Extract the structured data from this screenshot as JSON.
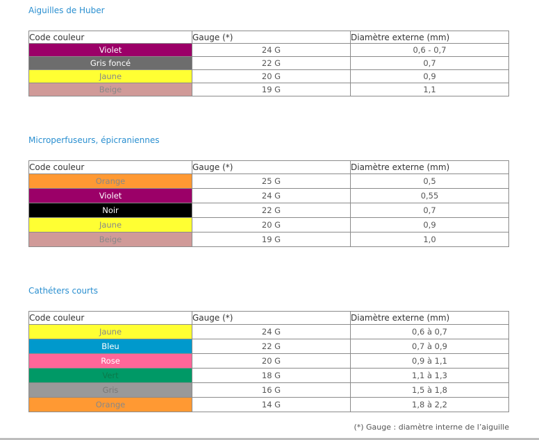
{
  "sections": [
    {
      "title": "Aiguilles de Huber",
      "header": [
        "Code couleur",
        "Gauge (*)",
        "Diamètre externe (mm)"
      ],
      "rows": [
        [
          "Violet",
          "24 G",
          "0,6 - 0,7"
        ],
        [
          "Gris foncé",
          "22 G",
          "0,7"
        ],
        [
          "Jaune",
          "20 G",
          "0,9"
        ],
        [
          "Beige",
          "19 G",
          "1,1"
        ]
      ],
      "cell_colors": [
        [
          "#9b0068",
          "#ffffff"
        ],
        [
          "#6d6d6d",
          "#ffffff"
        ],
        [
          "#ffff33",
          "#888888"
        ],
        [
          "#d09a98",
          "#888888"
        ]
      ]
    },
    {
      "title": "Microperfuseurs, épicraniennes",
      "header": [
        "Code couleur",
        "Gauge (*)",
        "Diamètre externe (mm)"
      ],
      "rows": [
        [
          "Orange",
          "25 G",
          "0,5"
        ],
        [
          "Violet",
          "24 G",
          "0,55"
        ],
        [
          "Noir",
          "22 G",
          "0,7"
        ],
        [
          "Jaune",
          "20 G",
          "0,9"
        ],
        [
          "Beige",
          "19 G",
          "1,0"
        ]
      ],
      "cell_colors": [
        [
          "#ff9933",
          "#888888"
        ],
        [
          "#9b0068",
          "#ffffff"
        ],
        [
          "#000000",
          "#ffffff"
        ],
        [
          "#ffff33",
          "#888888"
        ],
        [
          "#d09a98",
          "#888888"
        ]
      ]
    },
    {
      "title": "Cathéters courts",
      "header": [
        "Code couleur",
        "Gauge (*)",
        "Diamètre externe (mm)"
      ],
      "rows": [
        [
          "Jaune",
          "24 G",
          "0,6 à 0,7"
        ],
        [
          "Bleu",
          "22 G",
          "0,7 à 0,9"
        ],
        [
          "Rose",
          "20 G",
          "0,9 à 1,1"
        ],
        [
          "Vert",
          "18 G",
          "1,1 à 1,3"
        ],
        [
          "Gris",
          "16 G",
          "1,5 à 1,8"
        ],
        [
          "Orange",
          "14 G",
          "1,8 à 2,2"
        ]
      ],
      "cell_colors": [
        [
          "#ffff33",
          "#888888"
        ],
        [
          "#0099cc",
          "#ffffff"
        ],
        [
          "#ff6699",
          "#ffffff"
        ],
        [
          "#009966",
          "#0a7a4a"
        ],
        [
          "#999999",
          "#777777"
        ],
        [
          "#ff9933",
          "#888888"
        ]
      ]
    }
  ],
  "footnote": "(*) Gauge : diamètre interne de l’aiguille"
}
